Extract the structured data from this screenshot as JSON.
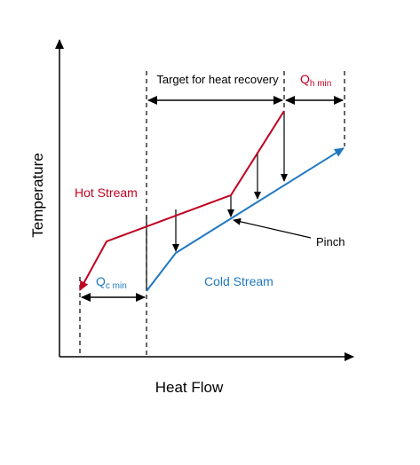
{
  "axes": {
    "y_label": "Temperature",
    "x_label": "Heat Flow"
  },
  "labels": {
    "target": "Target for heat recovery",
    "qh": {
      "main": "Q",
      "sub": "h min"
    },
    "qc": {
      "main": "Q",
      "sub": "c min"
    },
    "hot": "Hot Stream",
    "cold": "Cold Stream",
    "pinch": "Pinch"
  }
}
